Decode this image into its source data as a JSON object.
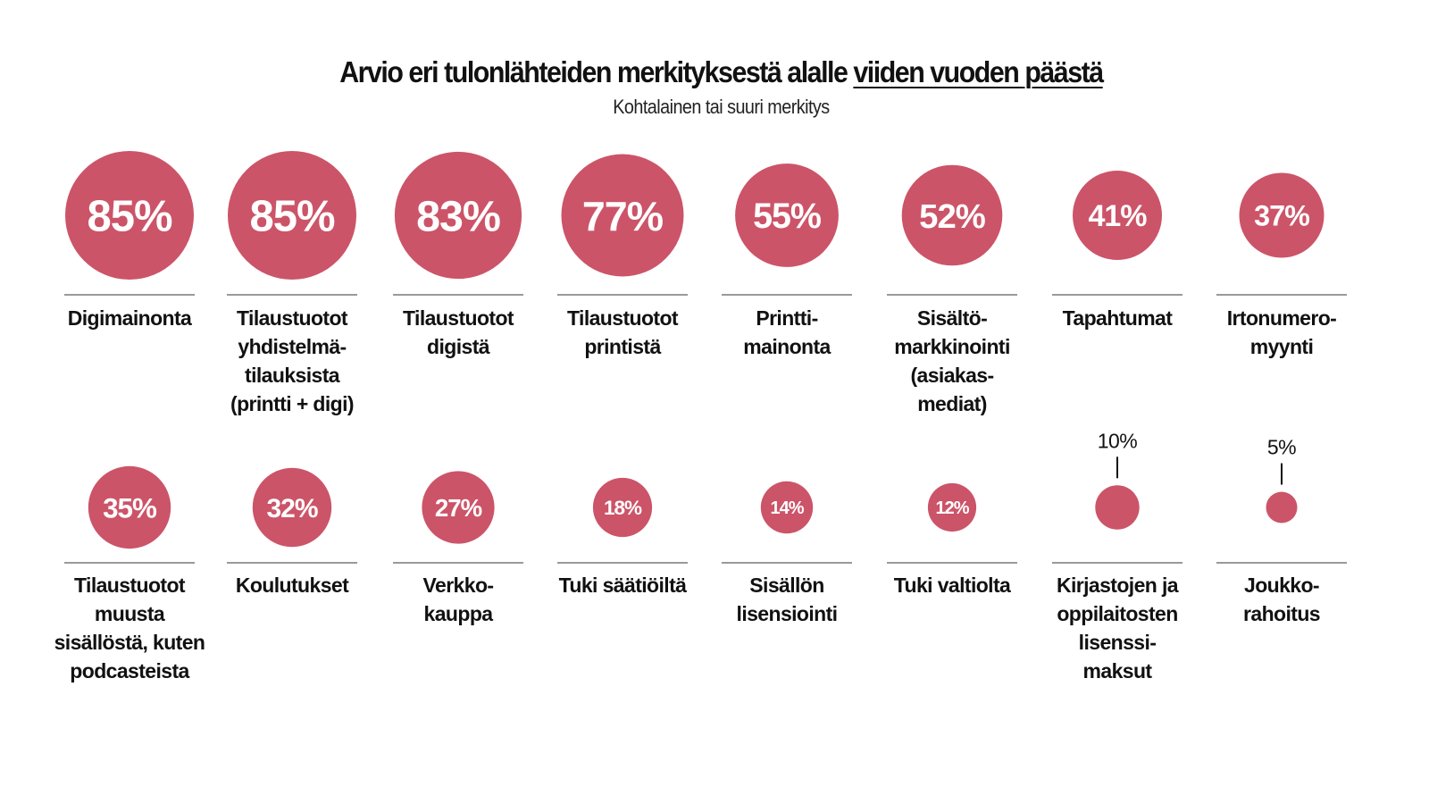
{
  "chart_data": {
    "type": "bubble",
    "title_parts": [
      {
        "text": "Arvio eri tulonlähteiden merkityksestä alalle ",
        "underline": false
      },
      {
        "text": "viiden vuoden päästä",
        "underline": true
      }
    ],
    "subtitle": "Kohtalainen tai suuri merkitys",
    "unit": "%",
    "color": "#CC5468",
    "divider_color": "#9A9A9A",
    "rows": [
      [
        {
          "value": 85,
          "label": "85%",
          "label_lines": [
            "Digimainonta"
          ]
        },
        {
          "value": 85,
          "label": "85%",
          "label_lines": [
            "Tilaustuotot",
            "yhdistelmä-",
            "tilauksista",
            "(printti + digi)"
          ]
        },
        {
          "value": 83,
          "label": "83%",
          "label_lines": [
            "Tilaustuotot",
            "digistä"
          ]
        },
        {
          "value": 77,
          "label": "77%",
          "label_lines": [
            "Tilaustuotot",
            "printistä"
          ]
        },
        {
          "value": 55,
          "label": "55%",
          "label_lines": [
            "Printti-",
            "mainonta"
          ]
        },
        {
          "value": 52,
          "label": "52%",
          "label_lines": [
            "Sisältö-",
            "markkinointi",
            "(asiakas-",
            "mediat)"
          ]
        },
        {
          "value": 41,
          "label": "41%",
          "label_lines": [
            "Tapahtumat"
          ]
        },
        {
          "value": 37,
          "label": "37%",
          "label_lines": [
            "Irtonumero-",
            "myynti"
          ]
        }
      ],
      [
        {
          "value": 35,
          "label": "35%",
          "label_lines": [
            "Tilaustuotot",
            "muusta",
            "sisällöstä, kuten",
            "podcasteista"
          ]
        },
        {
          "value": 32,
          "label": "32%",
          "label_lines": [
            "Koulutukset"
          ]
        },
        {
          "value": 27,
          "label": "27%",
          "label_lines": [
            "Verkko-",
            "kauppa"
          ]
        },
        {
          "value": 18,
          "label": "18%",
          "label_lines": [
            "Tuki säätiöiltä"
          ]
        },
        {
          "value": 14,
          "label": "14%",
          "label_lines": [
            "Sisällön",
            "lisensiointi"
          ]
        },
        {
          "value": 12,
          "label": "12%",
          "label_lines": [
            "Tuki valtiolta"
          ]
        },
        {
          "value": 10,
          "label": "10%",
          "label_outside": true,
          "label_lines": [
            "Kirjastojen ja",
            "oppilaitosten",
            "lisenssi-",
            "maksut"
          ]
        },
        {
          "value": 5,
          "label": "5%",
          "label_outside": true,
          "label_lines": [
            "Joukko-",
            "rahoitus"
          ]
        }
      ]
    ]
  }
}
